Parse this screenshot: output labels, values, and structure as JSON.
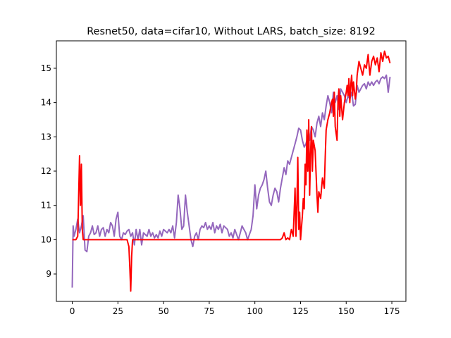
{
  "chart_data": {
    "type": "line",
    "title": "Resnet50, data=cifar10, Without LARS, batch_size: 8192",
    "xlabel": "",
    "ylabel": "",
    "xlim": [
      -8.7,
      182.7
    ],
    "ylim": [
      8.2,
      15.8
    ],
    "xticks": [
      0,
      25,
      50,
      75,
      100,
      125,
      150,
      175
    ],
    "yticks": [
      9,
      10,
      11,
      12,
      13,
      14,
      15
    ],
    "grid": false,
    "legend": "none",
    "series": [
      {
        "color": "#9467bd",
        "points": [
          [
            0,
            8.6
          ],
          [
            0.5,
            10.4
          ],
          [
            1,
            10.1
          ],
          [
            2,
            10.3
          ],
          [
            3,
            10.6
          ],
          [
            4,
            10.2
          ],
          [
            5,
            10.4
          ],
          [
            6,
            10.7
          ],
          [
            7,
            9.7
          ],
          [
            8,
            9.65
          ],
          [
            9,
            10.1
          ],
          [
            10,
            10.2
          ],
          [
            11,
            10.4
          ],
          [
            12,
            10.15
          ],
          [
            13,
            10.2
          ],
          [
            14,
            10.4
          ],
          [
            15,
            10.1
          ],
          [
            16,
            10.3
          ],
          [
            17,
            10.35
          ],
          [
            18,
            10.1
          ],
          [
            19,
            10.3
          ],
          [
            20,
            10.2
          ],
          [
            21,
            10.5
          ],
          [
            22,
            10.4
          ],
          [
            23,
            10.1
          ],
          [
            24,
            10.6
          ],
          [
            25,
            10.8
          ],
          [
            26,
            10.1
          ],
          [
            27,
            10.0
          ],
          [
            28,
            10.2
          ],
          [
            29,
            10.15
          ],
          [
            30,
            10.25
          ],
          [
            31,
            10.3
          ],
          [
            32,
            10.1
          ],
          [
            33,
            10.2
          ],
          [
            34,
            9.85
          ],
          [
            35,
            10.3
          ],
          [
            36,
            10.0
          ],
          [
            37,
            10.3
          ],
          [
            38,
            9.85
          ],
          [
            39,
            10.2
          ],
          [
            40,
            10.15
          ],
          [
            41,
            10.1
          ],
          [
            42,
            10.3
          ],
          [
            43,
            10.1
          ],
          [
            44,
            10.2
          ],
          [
            45,
            10.05
          ],
          [
            46,
            10.15
          ],
          [
            47,
            10.05
          ],
          [
            48,
            10.25
          ],
          [
            49,
            10.1
          ],
          [
            50,
            10.3
          ],
          [
            51,
            10.25
          ],
          [
            52,
            10.2
          ],
          [
            53,
            10.3
          ],
          [
            54,
            10.2
          ],
          [
            55,
            10.4
          ],
          [
            56,
            10.05
          ],
          [
            57,
            10.5
          ],
          [
            58,
            11.3
          ],
          [
            59,
            10.9
          ],
          [
            60,
            10.3
          ],
          [
            61,
            10.4
          ],
          [
            62,
            11.3
          ],
          [
            63,
            10.8
          ],
          [
            64,
            10.4
          ],
          [
            65,
            10.0
          ],
          [
            66,
            9.8
          ],
          [
            67,
            10.1
          ],
          [
            68,
            10.2
          ],
          [
            69,
            10.0
          ],
          [
            70,
            10.3
          ],
          [
            71,
            10.4
          ],
          [
            72,
            10.35
          ],
          [
            73,
            10.5
          ],
          [
            74,
            10.3
          ],
          [
            75,
            10.4
          ],
          [
            76,
            10.3
          ],
          [
            77,
            10.5
          ],
          [
            78,
            10.2
          ],
          [
            79,
            10.4
          ],
          [
            80,
            10.3
          ],
          [
            81,
            10.45
          ],
          [
            82,
            10.2
          ],
          [
            83,
            10.4
          ],
          [
            84,
            10.35
          ],
          [
            85,
            10.3
          ],
          [
            86,
            10.1
          ],
          [
            87,
            10.2
          ],
          [
            88,
            10.05
          ],
          [
            89,
            10.3
          ],
          [
            90,
            10.15
          ],
          [
            91,
            10.0
          ],
          [
            92,
            10.2
          ],
          [
            93,
            10.4
          ],
          [
            94,
            10.3
          ],
          [
            95,
            10.2
          ],
          [
            96,
            10.0
          ],
          [
            97,
            10.15
          ],
          [
            98,
            10.3
          ],
          [
            99,
            10.7
          ],
          [
            100,
            11.6
          ],
          [
            101,
            10.9
          ],
          [
            102,
            11.3
          ],
          [
            103,
            11.5
          ],
          [
            104,
            11.6
          ],
          [
            105,
            11.75
          ],
          [
            106,
            12.0
          ],
          [
            107,
            11.5
          ],
          [
            108,
            11.1
          ],
          [
            109,
            11.0
          ],
          [
            110,
            11.3
          ],
          [
            111,
            11.5
          ],
          [
            112,
            11.4
          ],
          [
            113,
            11.1
          ],
          [
            114,
            11.5
          ],
          [
            115,
            11.8
          ],
          [
            116,
            12.1
          ],
          [
            117,
            11.9
          ],
          [
            118,
            12.3
          ],
          [
            119,
            12.2
          ],
          [
            120,
            12.4
          ],
          [
            121,
            12.6
          ],
          [
            122,
            12.8
          ],
          [
            123,
            13.0
          ],
          [
            124,
            13.25
          ],
          [
            125,
            13.2
          ],
          [
            126,
            12.9
          ],
          [
            127,
            12.7
          ],
          [
            128,
            12.8
          ],
          [
            129,
            13.0
          ],
          [
            130,
            12.9
          ],
          [
            131,
            13.3
          ],
          [
            132,
            13.2
          ],
          [
            133,
            13.0
          ],
          [
            134,
            13.4
          ],
          [
            135,
            13.6
          ],
          [
            136,
            13.3
          ],
          [
            137,
            13.7
          ],
          [
            138,
            13.5
          ],
          [
            139,
            13.9
          ],
          [
            140,
            14.2
          ],
          [
            141,
            14.0
          ],
          [
            142,
            13.7
          ],
          [
            143,
            14.3
          ],
          [
            144,
            14.0
          ],
          [
            145,
            14.2
          ],
          [
            146,
            13.8
          ],
          [
            147,
            14.4
          ],
          [
            148,
            14.3
          ],
          [
            149,
            14.2
          ],
          [
            150,
            14.0
          ],
          [
            151,
            14.2
          ],
          [
            152,
            14.1
          ],
          [
            153,
            14.3
          ],
          [
            154,
            13.9
          ],
          [
            155,
            13.95
          ],
          [
            156,
            14.5
          ],
          [
            157,
            14.3
          ],
          [
            158,
            14.4
          ],
          [
            159,
            14.5
          ],
          [
            160,
            14.55
          ],
          [
            161,
            14.4
          ],
          [
            162,
            14.6
          ],
          [
            163,
            14.5
          ],
          [
            164,
            14.6
          ],
          [
            165,
            14.5
          ],
          [
            166,
            14.6
          ],
          [
            167,
            14.65
          ],
          [
            168,
            14.55
          ],
          [
            169,
            14.7
          ],
          [
            170,
            14.75
          ],
          [
            171,
            14.7
          ],
          [
            172,
            14.8
          ],
          [
            173,
            14.3
          ],
          [
            174,
            14.75
          ]
        ]
      },
      {
        "color": "#ff0000",
        "points": [
          [
            0,
            10.0
          ],
          [
            1,
            10.0
          ],
          [
            2,
            10.0
          ],
          [
            3,
            10.1
          ],
          [
            4,
            12.45
          ],
          [
            4.5,
            11.0
          ],
          [
            5,
            12.2
          ],
          [
            5.5,
            10.3
          ],
          [
            6,
            10.0
          ],
          [
            10,
            10.0
          ],
          [
            20,
            10.0
          ],
          [
            30,
            10.0
          ],
          [
            31,
            9.8
          ],
          [
            31.5,
            9.2
          ],
          [
            32,
            8.5
          ],
          [
            32.5,
            9.5
          ],
          [
            33,
            10.0
          ],
          [
            34,
            10.0
          ],
          [
            40,
            10.0
          ],
          [
            60,
            10.0
          ],
          [
            80,
            10.0
          ],
          [
            100,
            10.0
          ],
          [
            114,
            10.0
          ],
          [
            115,
            10.05
          ],
          [
            116,
            10.2
          ],
          [
            117,
            10.0
          ],
          [
            118,
            10.05
          ],
          [
            119,
            10.0
          ],
          [
            120,
            10.3
          ],
          [
            121,
            10.1
          ],
          [
            122,
            11.5
          ],
          [
            122.5,
            10.1
          ],
          [
            123,
            11.0
          ],
          [
            123.5,
            12.4
          ],
          [
            124,
            10.3
          ],
          [
            124.5,
            10.8
          ],
          [
            125,
            10.0
          ],
          [
            126,
            10.7
          ],
          [
            126.5,
            11.2
          ],
          [
            127,
            10.9
          ],
          [
            127.5,
            12.2
          ],
          [
            128,
            11.6
          ],
          [
            128.5,
            13.2
          ],
          [
            129,
            12.0
          ],
          [
            129.5,
            13.5
          ],
          [
            130,
            11.3
          ],
          [
            130.5,
            12.5
          ],
          [
            131,
            13.3
          ],
          [
            131.5,
            12.0
          ],
          [
            132,
            12.9
          ],
          [
            133,
            12.6
          ],
          [
            134,
            11.3
          ],
          [
            134.5,
            10.8
          ],
          [
            135,
            11.4
          ],
          [
            136,
            11.2
          ],
          [
            137,
            11.8
          ],
          [
            138,
            11.5
          ],
          [
            138.5,
            12.4
          ],
          [
            139,
            13.2
          ],
          [
            140,
            13.5
          ],
          [
            141,
            13.7
          ],
          [
            142,
            14.0
          ],
          [
            142.5,
            14.1
          ],
          [
            143,
            13.6
          ],
          [
            143.5,
            14.3
          ],
          [
            144,
            13.3
          ],
          [
            145,
            12.9
          ],
          [
            145.5,
            14.0
          ],
          [
            146,
            14.4
          ],
          [
            146.5,
            13.6
          ],
          [
            147,
            14.2
          ],
          [
            148,
            13.5
          ],
          [
            149,
            14.0
          ],
          [
            150,
            14.3
          ],
          [
            150.5,
            14.5
          ],
          [
            151,
            14.2
          ],
          [
            151.5,
            14.7
          ],
          [
            152,
            14.0
          ],
          [
            152.5,
            14.5
          ],
          [
            153,
            14.8
          ],
          [
            153.5,
            14.2
          ],
          [
            154,
            14.6
          ],
          [
            155,
            14.1
          ],
          [
            155.5,
            14.3
          ],
          [
            156,
            14.8
          ],
          [
            157,
            15.2
          ],
          [
            158,
            15.0
          ],
          [
            159,
            14.8
          ],
          [
            160,
            15.1
          ],
          [
            161,
            15.0
          ],
          [
            162,
            15.4
          ],
          [
            163,
            14.8
          ],
          [
            164,
            15.2
          ],
          [
            165,
            15.35
          ],
          [
            166,
            15.1
          ],
          [
            167,
            15.3
          ],
          [
            168,
            14.9
          ],
          [
            169,
            15.45
          ],
          [
            170,
            15.2
          ],
          [
            171,
            15.5
          ],
          [
            172,
            15.3
          ],
          [
            173,
            15.35
          ],
          [
            174,
            15.15
          ]
        ]
      }
    ]
  }
}
